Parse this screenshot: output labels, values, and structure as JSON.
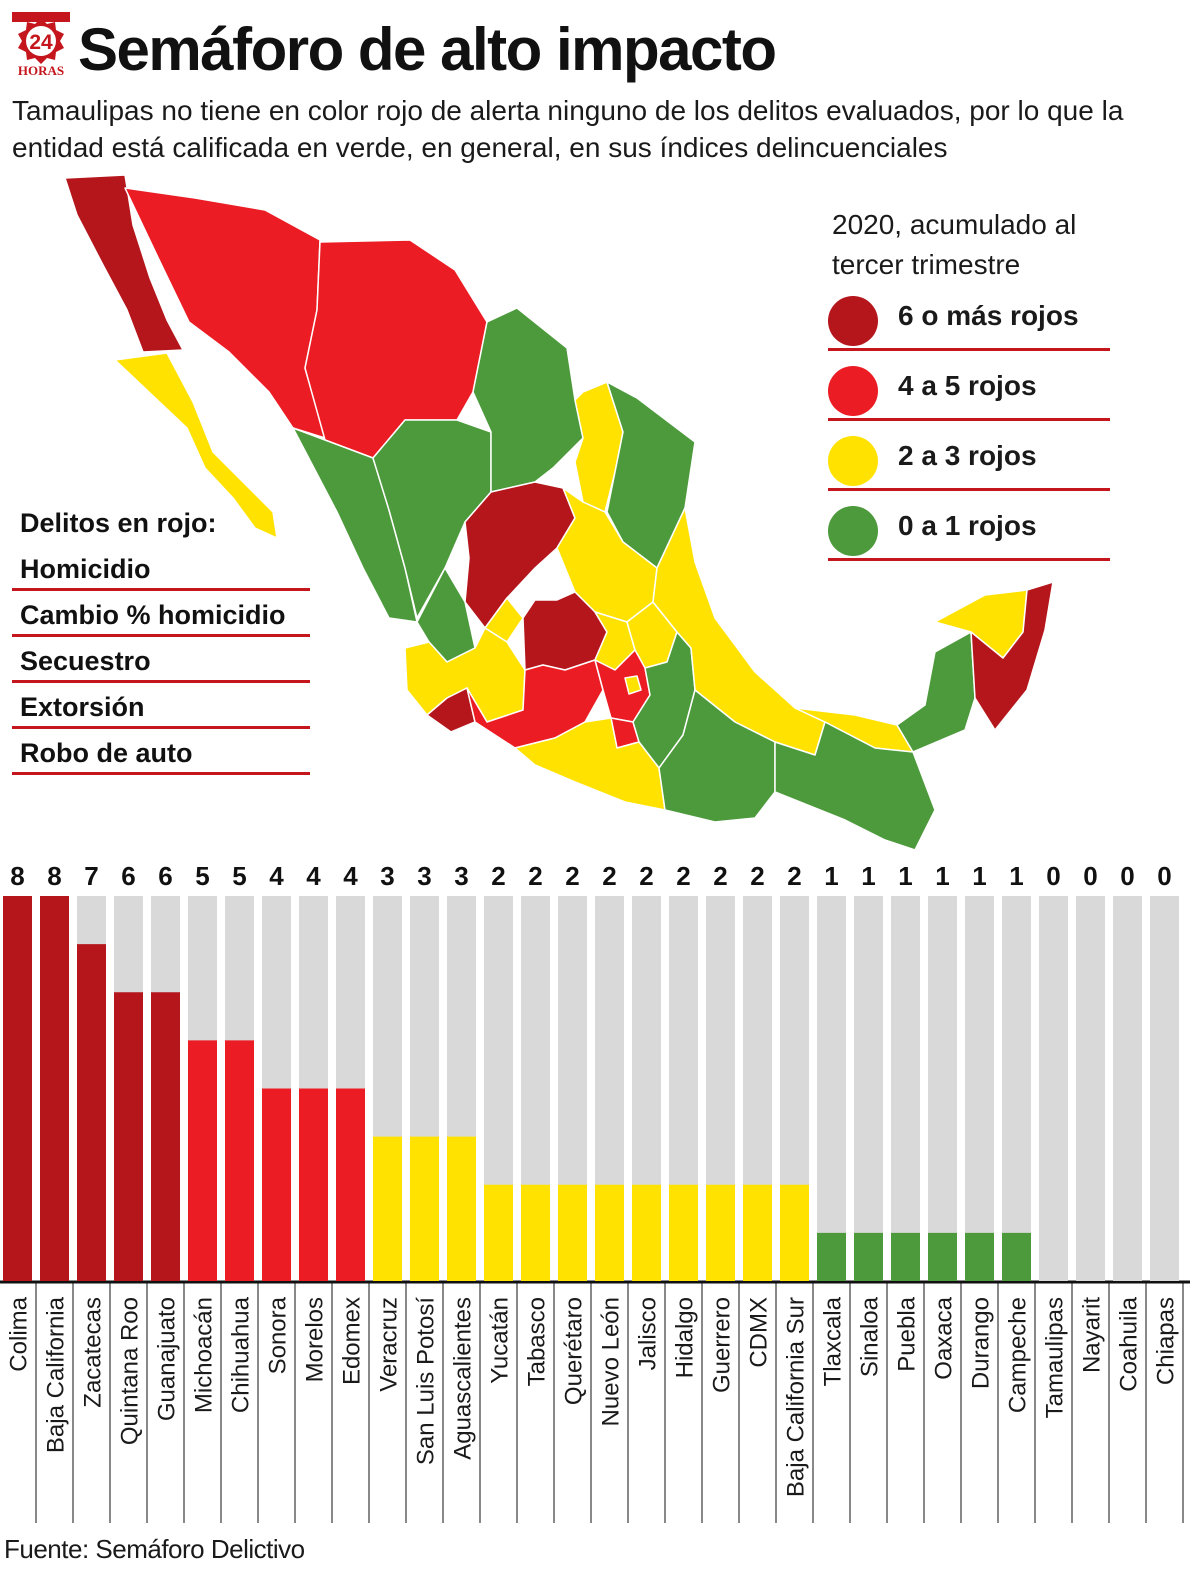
{
  "header": {
    "logo_text": "24",
    "logo_brand": "HORAS",
    "title": "Semáforo de alto impacto",
    "subtitle": "Tamaulipas no tiene en color rojo de alerta ninguno de los delitos evaluados, por lo que la entidad está calificada en verde, en general, en sus índices delincuenciales"
  },
  "legend": {
    "title": "2020, acumulado al tercer trimestre",
    "items": [
      {
        "label": "6 o más rojos",
        "color": "#b5161c"
      },
      {
        "label": "4 a 5 rojos",
        "color": "#ec1c24"
      },
      {
        "label": "2 a 3 rojos",
        "color": "#ffe200"
      },
      {
        "label": "0 a 1 rojos",
        "color": "#4c9a3b"
      }
    ]
  },
  "crimes": {
    "title": "Delitos en rojo:",
    "items": [
      "Homicidio",
      "Cambio % homicidio",
      "Secuestro",
      "Extorsión",
      "Robo de auto"
    ]
  },
  "map": {
    "colors": {
      "dark_red": "#b5161c",
      "red": "#ec1c24",
      "yellow": "#ffe200",
      "green": "#4c9a3b"
    }
  },
  "chart_data": {
    "type": "bar",
    "title": "",
    "xlabel": "",
    "ylabel": "",
    "ylim": [
      0,
      8
    ],
    "grid": false,
    "background_color": "#d9d9d9",
    "categories": [
      "Colima",
      "Baja California",
      "Zacatecas",
      "Quintana Roo",
      "Guanajuato",
      "Michoacán",
      "Chihuahua",
      "Sonora",
      "Morelos",
      "Edomex",
      "Veracruz",
      "San Luis Potosí",
      "Aguascalientes",
      "Yucatán",
      "Tabasco",
      "Querétaro",
      "Nuevo León",
      "Jalisco",
      "Hidalgo",
      "Guerrero",
      "CDMX",
      "Baja California Sur",
      "Tlaxcala",
      "Sinaloa",
      "Puebla",
      "Oaxaca",
      "Durango",
      "Campeche",
      "Tamaulipas",
      "Nayarit",
      "Coahuila",
      "Chiapas"
    ],
    "values": [
      8,
      8,
      7,
      6,
      6,
      5,
      5,
      4,
      4,
      4,
      3,
      3,
      3,
      2,
      2,
      2,
      2,
      2,
      2,
      2,
      2,
      2,
      1,
      1,
      1,
      1,
      1,
      1,
      0,
      0,
      0,
      0
    ],
    "value_labels": [
      "8",
      "8",
      "7",
      "6",
      "6",
      "5",
      "5",
      "4",
      "4",
      "4",
      "3",
      "3",
      "3",
      "2",
      "2",
      "2",
      "2",
      "2",
      "2",
      "2",
      "2",
      "2",
      "1",
      "1",
      "1",
      "1",
      "1",
      "1",
      "0",
      "0",
      "0",
      "0"
    ]
  },
  "footer": {
    "source": "Fuente: Semáforo Delictivo"
  }
}
